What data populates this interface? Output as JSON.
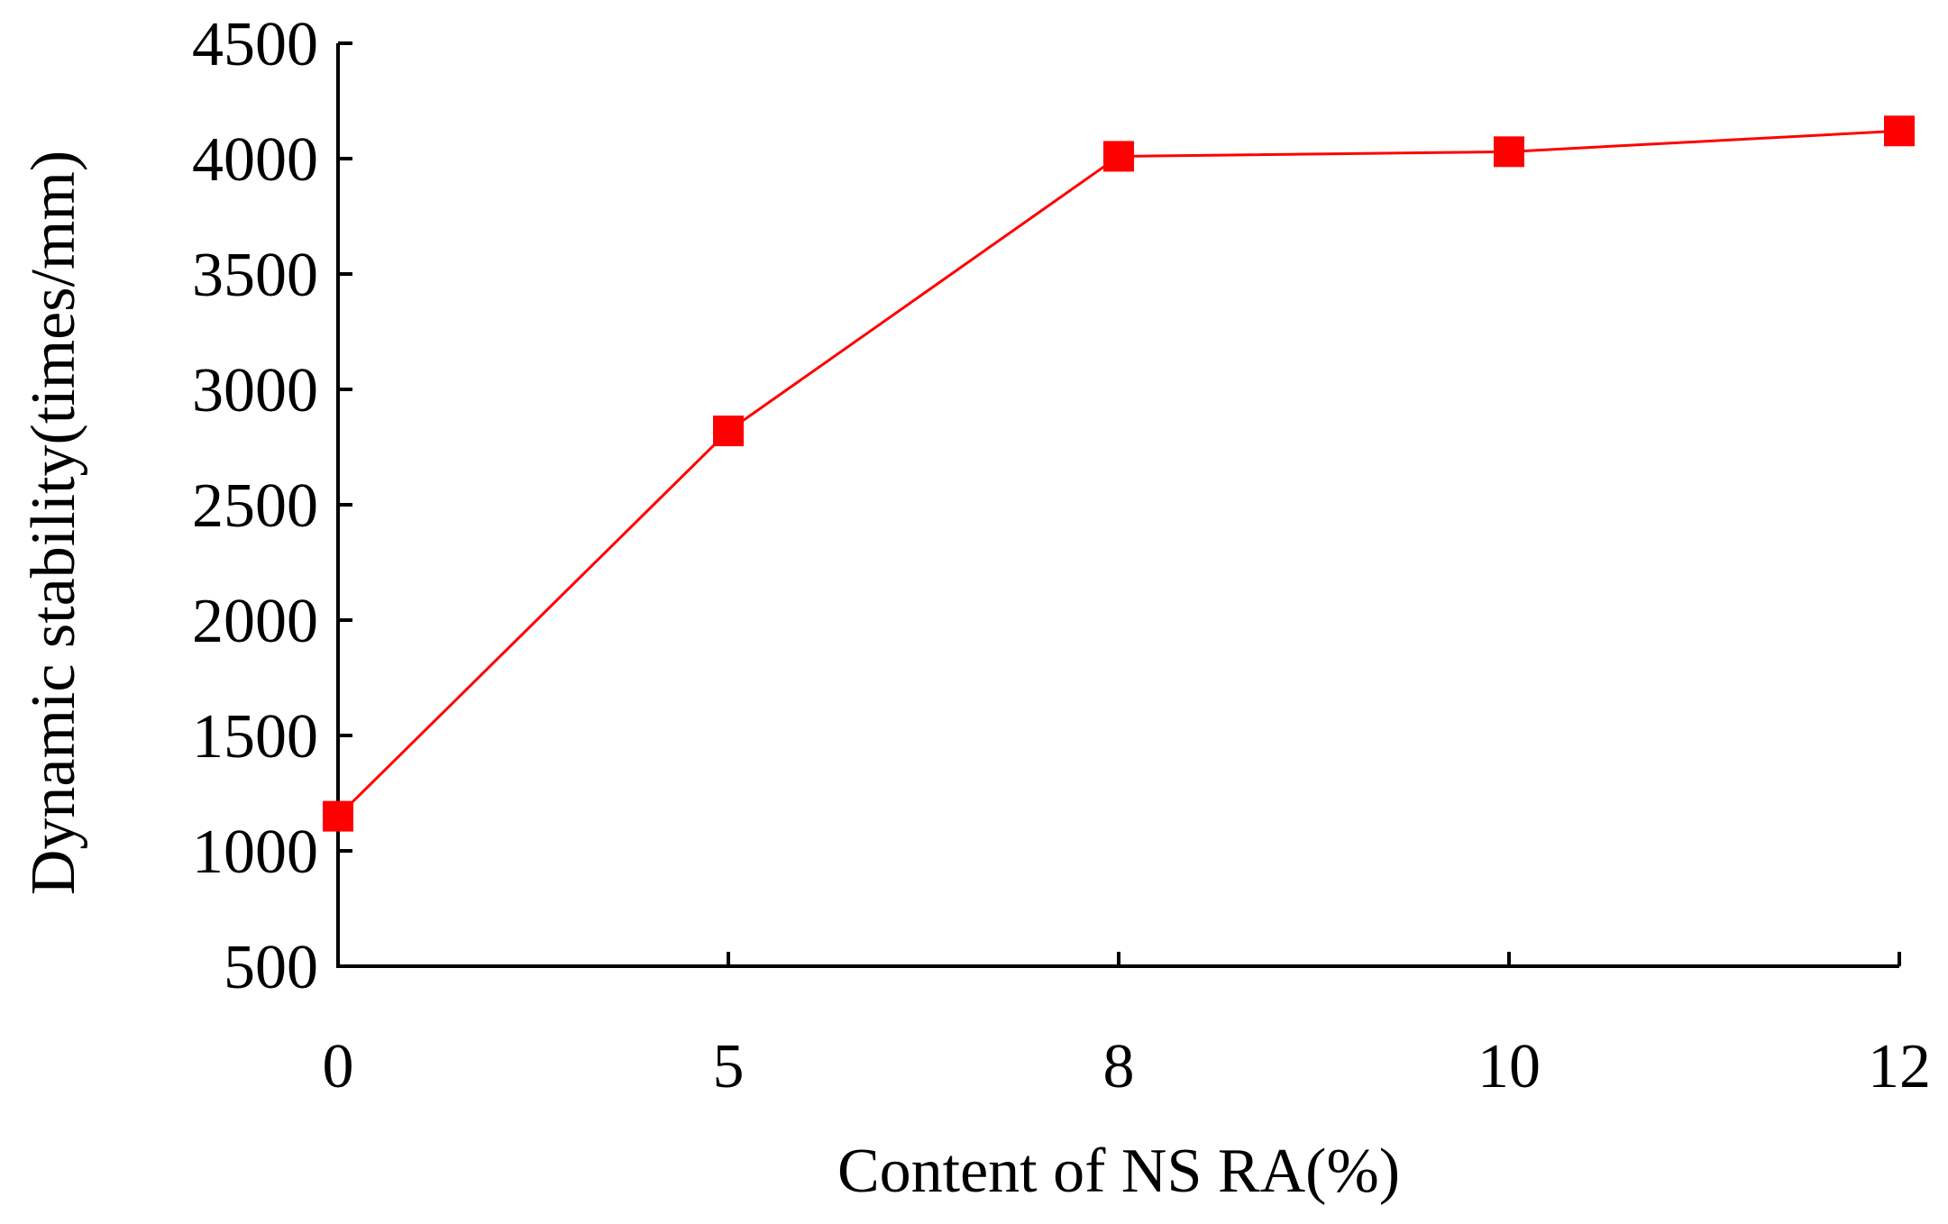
{
  "chart_data": {
    "type": "line",
    "x": [
      0,
      5,
      8,
      10,
      12
    ],
    "series": [
      {
        "values": [
          1150,
          2820,
          4010,
          4030,
          4120
        ],
        "color": "#ff0000",
        "marker": "square"
      }
    ],
    "xlabel": "Content of NS RA(%)",
    "ylabel": "Dynamic stability(times/mm)",
    "x_ticks": [
      "0",
      "5",
      "8",
      "10",
      "12"
    ],
    "y_ticks": [
      "500",
      "1000",
      "1500",
      "2000",
      "2500",
      "3000",
      "3500",
      "4000",
      "4500"
    ],
    "ylim": [
      500,
      4500
    ],
    "x_scale": "categorical-equal-spacing",
    "grid": false,
    "legend": "none"
  }
}
